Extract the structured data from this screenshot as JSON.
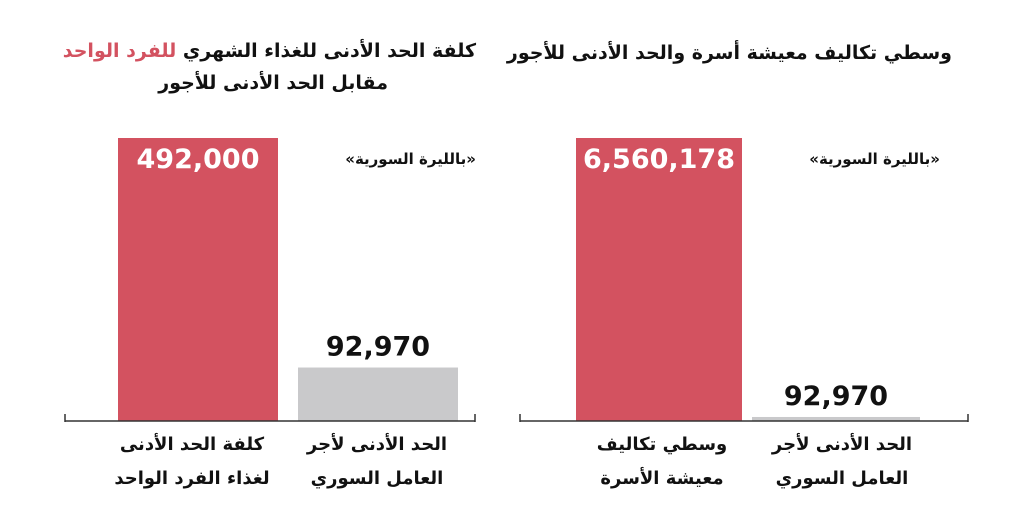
{
  "colors": {
    "primary": "#d35260",
    "secondary": "#c9c9cb",
    "axis": "#333333"
  },
  "chart_data": [
    {
      "type": "bar",
      "title_parts": [
        "كلفة الحد الأدنى للغذاء الشهري ",
        "للفرد الواحد"
      ],
      "title_line2": "مقابل الحد الأدنى للأجور",
      "unit_note": "«بالليرة السورية»",
      "categories": [
        "كلفة الحد الأدنى لغذاء الفرد الواحد",
        "الحد الأدنى لأجر العامل السوري"
      ],
      "category_lines": [
        [
          "كلفة الحد الأدنى",
          "لغذاء الفرد الواحد"
        ],
        [
          "الحد الأدنى لأجر",
          "العامل السوري"
        ]
      ],
      "values": [
        492000,
        92970
      ],
      "value_labels": [
        "492,000",
        "92,970"
      ],
      "ylim": [
        0,
        492000
      ]
    },
    {
      "type": "bar",
      "title_parts": [
        "وسطي تكاليف معيشة أسرة والحد الأدنى للأجور"
      ],
      "title_line2": "",
      "unit_note": "«بالليرة السورية»",
      "categories": [
        "وسطي تكاليف معيشة الأسرة",
        "الحد الأدنى لأجر العامل السوري"
      ],
      "category_lines": [
        [
          "وسطي تكاليف",
          "معيشة الأسرة"
        ],
        [
          "الحد الأدنى لأجر",
          "العامل السوري"
        ]
      ],
      "values": [
        6560178,
        92970
      ],
      "value_labels": [
        "6,560,178",
        "92,970"
      ],
      "ylim": [
        0,
        6560178
      ]
    }
  ]
}
